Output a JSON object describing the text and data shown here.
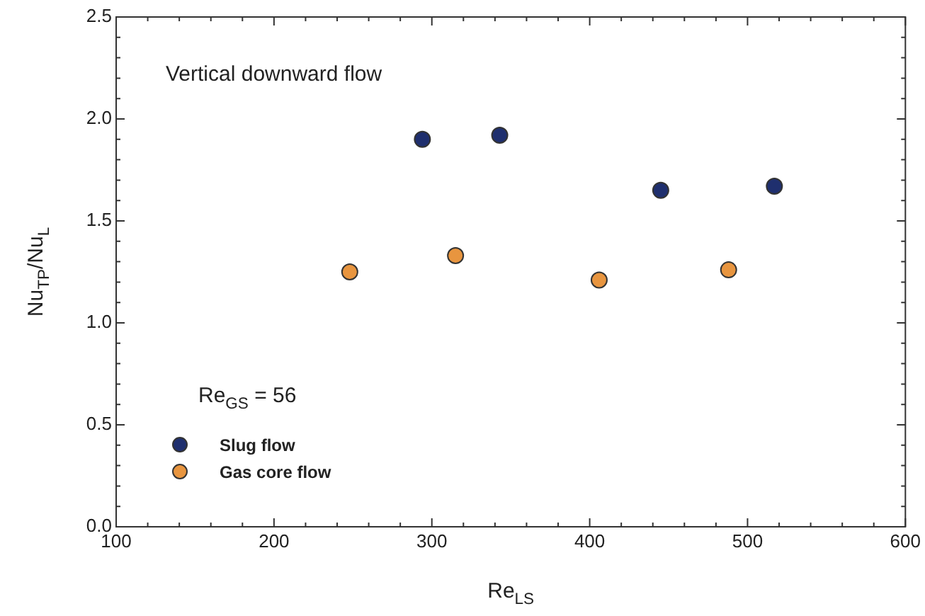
{
  "chart_data": {
    "type": "scatter",
    "xlabel": "Re$_{LS}$",
    "ylabel": "Nu$_{TP}$/Nu$_{L}$",
    "annotations": [
      "Vertical downward flow",
      "Re$_{GS}$ = 56"
    ],
    "series": [
      {
        "name": "Slug flow",
        "color": "#1f2f6e",
        "x": [
          294,
          343,
          445,
          517
        ],
        "values": [
          1.9,
          1.92,
          1.65,
          1.67
        ]
      },
      {
        "name": "Gas core flow",
        "color": "#e8953f",
        "x": [
          248,
          315,
          406,
          488
        ],
        "values": [
          1.25,
          1.33,
          1.21,
          1.26
        ]
      }
    ],
    "xlim": [
      100,
      600
    ],
    "xticks": [
      100,
      200,
      300,
      400,
      500,
      600
    ],
    "ylim": [
      0,
      2.5
    ],
    "yticks": [
      {
        "value": 0,
        "label": "0.0"
      },
      0.5,
      {
        "value": 1,
        "label": "1.0"
      },
      1.5,
      {
        "value": 2,
        "label": "2.0"
      },
      2.5
    ],
    "grid": false,
    "legend": "bottom left",
    "marker": "circle"
  }
}
